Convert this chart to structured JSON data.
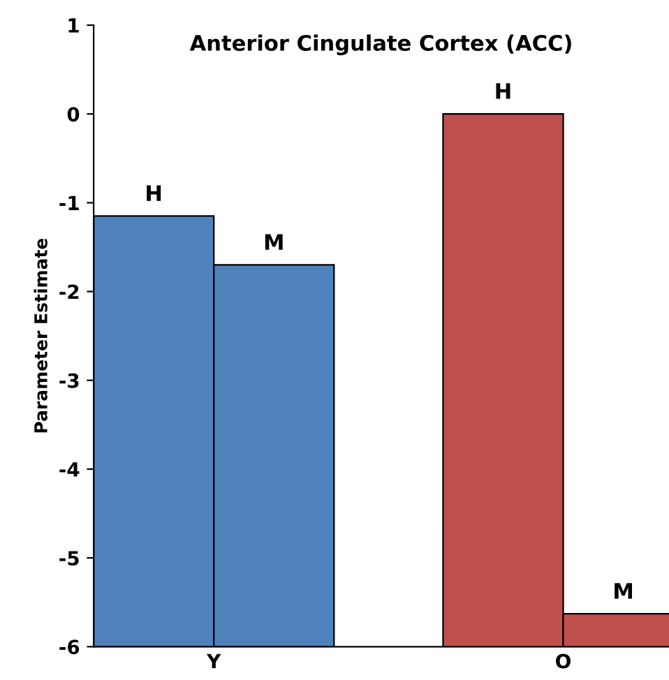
{
  "chart_data": {
    "type": "bar",
    "title": "Anterior Cingulate Cortex (ACC)",
    "ylabel": "Parameter Estimate",
    "categories": [
      "Y",
      "O"
    ],
    "series": [
      {
        "name": "H",
        "colors": [
          "#4f81bd",
          "#c0504d"
        ],
        "base": [
          -6,
          -6
        ],
        "values": [
          4.85,
          6.0
        ]
      },
      {
        "name": "M",
        "colors": [
          "#4f81bd",
          "#c0504d"
        ],
        "base": [
          -6,
          -6
        ],
        "values": [
          4.3,
          0.37
        ]
      }
    ],
    "ylim": [
      -6,
      1
    ],
    "yticks": [
      -6,
      -5,
      -4,
      -3,
      -2,
      -1,
      0,
      1
    ],
    "grid": false,
    "legend": false
  }
}
